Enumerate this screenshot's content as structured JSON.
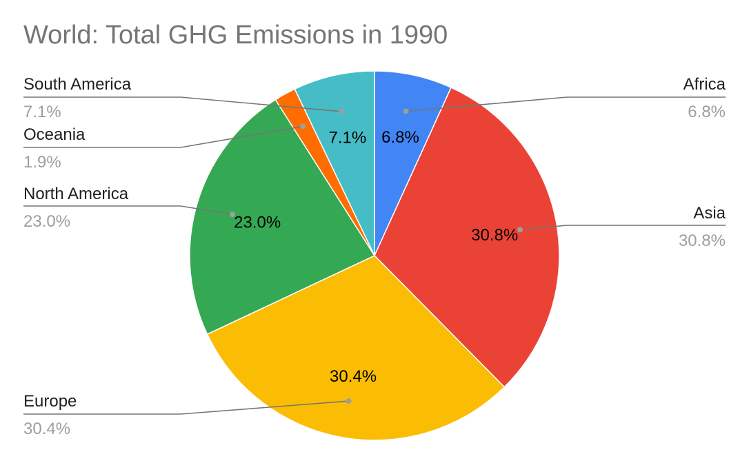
{
  "chart_data": {
    "type": "pie",
    "title": "World: Total GHG Emissions in 1990",
    "start_angle_deg": 0,
    "direction": "clockwise",
    "slices": [
      {
        "name": "Africa",
        "value": 6.8,
        "label": "6.8%",
        "color": "#4285F4",
        "side": "right"
      },
      {
        "name": "Asia",
        "value": 30.8,
        "label": "30.8%",
        "color": "#EA4335",
        "side": "right"
      },
      {
        "name": "Europe",
        "value": 30.4,
        "label": "30.4%",
        "color": "#FBBC04",
        "side": "left"
      },
      {
        "name": "North America",
        "value": 23.0,
        "label": "23.0%",
        "color": "#34A853",
        "side": "left"
      },
      {
        "name": "Oceania",
        "value": 1.9,
        "label": "1.9%",
        "color": "#FF6D01",
        "side": "left"
      },
      {
        "name": "South America",
        "value": 7.1,
        "label": "7.1%",
        "color": "#46BDC6",
        "side": "left"
      }
    ],
    "legend": "callout-labels"
  }
}
